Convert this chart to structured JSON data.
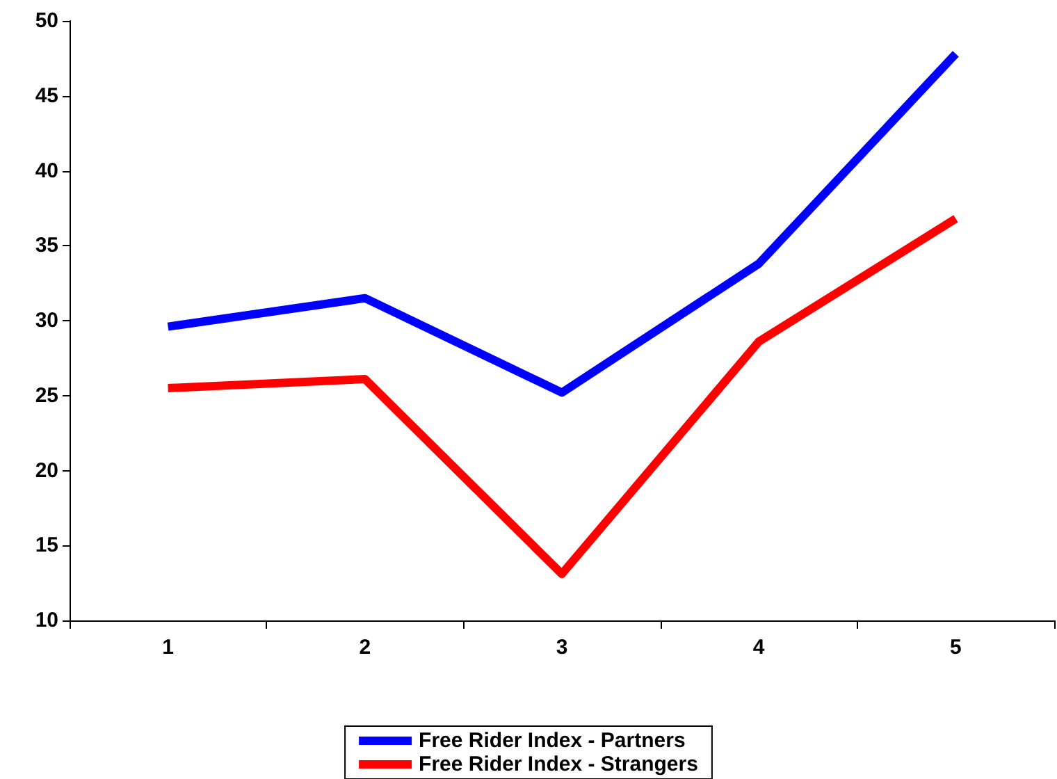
{
  "chart_data": {
    "type": "line",
    "categories": [
      "1",
      "2",
      "3",
      "4",
      "5"
    ],
    "series": [
      {
        "name": "Free Rider Index - Partners",
        "color": "#0000ff",
        "values": [
          29.6,
          31.5,
          25.2,
          33.8,
          47.8
        ]
      },
      {
        "name": "Free Rider Index - Strangers",
        "color": "#ff0000",
        "values": [
          25.5,
          26.1,
          13.1,
          28.6,
          36.8
        ]
      }
    ],
    "ylim": [
      10,
      50
    ],
    "yticks": [
      10,
      15,
      20,
      25,
      30,
      35,
      40,
      45,
      50
    ],
    "grid": false,
    "legend": "bottom",
    "marker": "none",
    "line_style": "solid"
  }
}
